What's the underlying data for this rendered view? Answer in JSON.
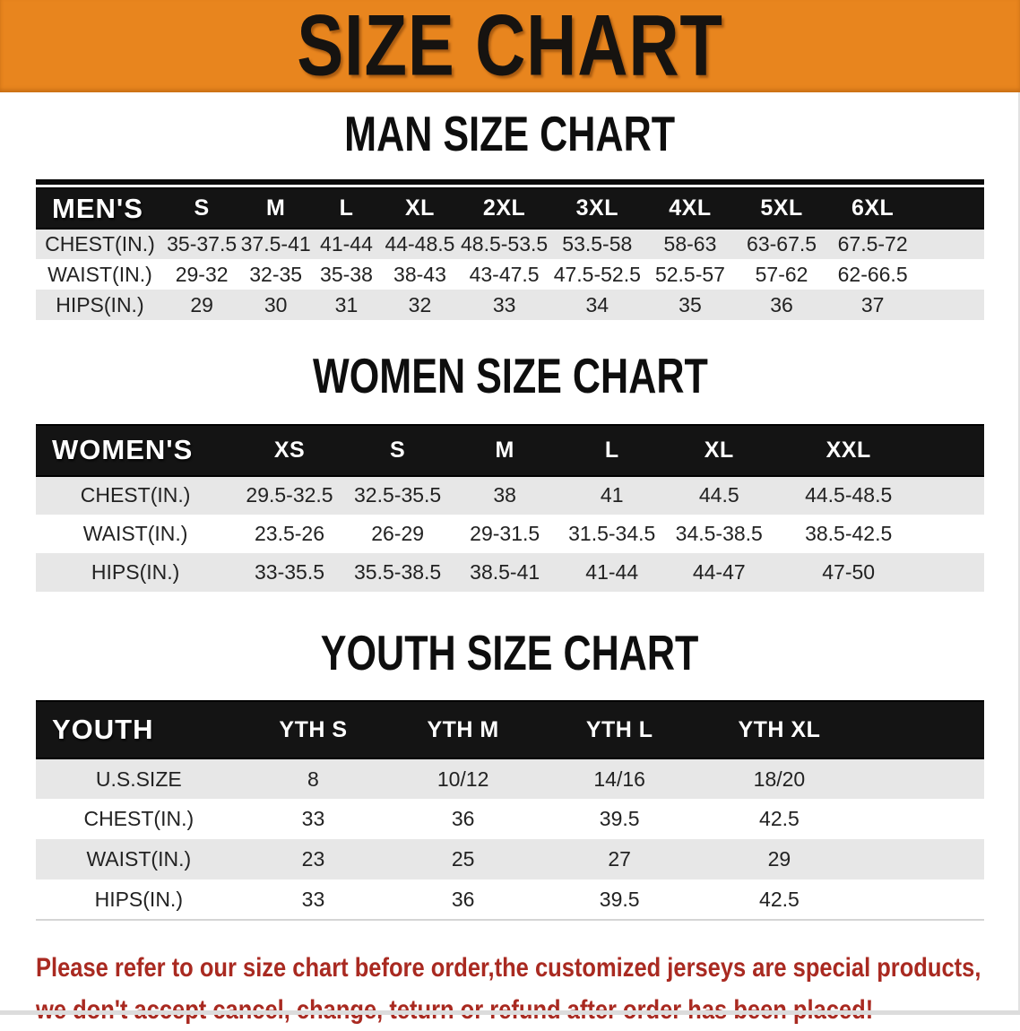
{
  "banner": {
    "title": "SIZE CHART"
  },
  "colors": {
    "banner_orange": "#E8851E",
    "header_bar_black": "#141414",
    "row_stripe_gray": "#E7E7E7",
    "notice_red": "#A92A21"
  },
  "men": {
    "heading": "MAN SIZE CHART",
    "group_label": "MEN'S",
    "columns": [
      "S",
      "M",
      "L",
      "XL",
      "2XL",
      "3XL",
      "4XL",
      "5XL",
      "6XL"
    ],
    "rows": [
      {
        "label": "CHEST(IN.)",
        "values": [
          "35-37.5",
          "37.5-41",
          "41-44",
          "44-48.5",
          "48.5-53.5",
          "53.5-58",
          "58-63",
          "63-67.5",
          "67.5-72"
        ]
      },
      {
        "label": "WAIST(IN.)",
        "values": [
          "29-32",
          "32-35",
          "35-38",
          "38-43",
          "43-47.5",
          "47.5-52.5",
          "52.5-57",
          "57-62",
          "62-66.5"
        ]
      },
      {
        "label": "HIPS(IN.)",
        "values": [
          "29",
          "30",
          "31",
          "32",
          "33",
          "34",
          "35",
          "36",
          "37"
        ]
      }
    ]
  },
  "women": {
    "heading": "WOMEN SIZE CHART",
    "group_label": "WOMEN'S",
    "columns": [
      "XS",
      "S",
      "M",
      "L",
      "XL",
      "XXL"
    ],
    "rows": [
      {
        "label": "CHEST(IN.)",
        "values": [
          "29.5-32.5",
          "32.5-35.5",
          "38",
          "41",
          "44.5",
          "44.5-48.5"
        ]
      },
      {
        "label": "WAIST(IN.)",
        "values": [
          "23.5-26",
          "26-29",
          "29-31.5",
          "31.5-34.5",
          "34.5-38.5",
          "38.5-42.5"
        ]
      },
      {
        "label": "HIPS(IN.)",
        "values": [
          "33-35.5",
          "35.5-38.5",
          "38.5-41",
          "41-44",
          "44-47",
          "47-50"
        ]
      }
    ]
  },
  "youth": {
    "heading": "YOUTH SIZE CHART",
    "group_label": "YOUTH",
    "columns": [
      "YTH S",
      "YTH M",
      "YTH L",
      "YTH XL"
    ],
    "rows": [
      {
        "label": "U.S.SIZE",
        "values": [
          "8",
          "10/12",
          "14/16",
          "18/20"
        ]
      },
      {
        "label": "CHEST(IN.)",
        "values": [
          "33",
          "36",
          "39.5",
          "42.5"
        ]
      },
      {
        "label": "WAIST(IN.)",
        "values": [
          "23",
          "25",
          "27",
          "29"
        ]
      },
      {
        "label": "HIPS(IN.)",
        "values": [
          "33",
          "36",
          "39.5",
          "42.5"
        ]
      }
    ]
  },
  "notice": {
    "line1": "Please refer to our size chart before order,the customized jerseys are special products,",
    "line2": "we don't accept cancel, change, teturn or refund after order has been placed!"
  }
}
